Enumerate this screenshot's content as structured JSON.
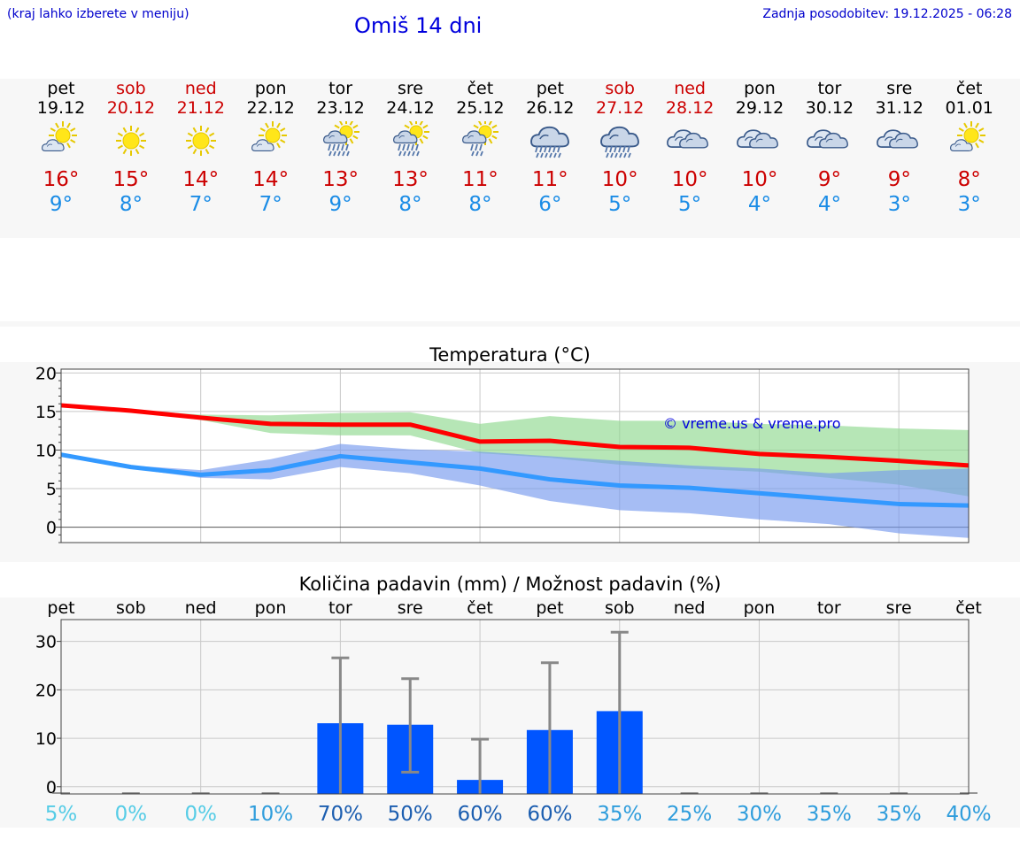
{
  "header": {
    "hint": "(kraj lahko izberete v meniju)",
    "title": "Omiš 14 dni",
    "updated": "Zadnja posodobitev: 19.12.2025 - 06:28"
  },
  "days": [
    {
      "name": "pet",
      "date": "19.12",
      "tmax": "16°",
      "tmin": "9°",
      "icon": "sun-cloud-icon",
      "weekend": false
    },
    {
      "name": "sob",
      "date": "20.12",
      "tmax": "15°",
      "tmin": "8°",
      "icon": "sun-icon",
      "weekend": true
    },
    {
      "name": "ned",
      "date": "21.12",
      "tmax": "14°",
      "tmin": "7°",
      "icon": "sun-icon",
      "weekend": true
    },
    {
      "name": "pon",
      "date": "22.12",
      "tmax": "14°",
      "tmin": "7°",
      "icon": "sun-cloud-icon",
      "weekend": false
    },
    {
      "name": "tor",
      "date": "23.12",
      "tmax": "13°",
      "tmin": "9°",
      "icon": "sun-cloud-rain-icon",
      "weekend": false
    },
    {
      "name": "sre",
      "date": "24.12",
      "tmax": "13°",
      "tmin": "8°",
      "icon": "sun-cloud-rain-icon",
      "weekend": false
    },
    {
      "name": "čet",
      "date": "25.12",
      "tmax": "11°",
      "tmin": "8°",
      "icon": "sun-cloud-light-rain-icon",
      "weekend": false
    },
    {
      "name": "pet",
      "date": "26.12",
      "tmax": "11°",
      "tmin": "6°",
      "icon": "cloud-rain-icon",
      "weekend": false
    },
    {
      "name": "sob",
      "date": "27.12",
      "tmax": "10°",
      "tmin": "5°",
      "icon": "cloud-rain-icon",
      "weekend": true
    },
    {
      "name": "ned",
      "date": "28.12",
      "tmax": "10°",
      "tmin": "5°",
      "icon": "cloud-icon",
      "weekend": true
    },
    {
      "name": "pon",
      "date": "29.12",
      "tmax": "10°",
      "tmin": "4°",
      "icon": "cloud-icon",
      "weekend": false
    },
    {
      "name": "tor",
      "date": "30.12",
      "tmax": "9°",
      "tmin": "4°",
      "icon": "cloud-icon",
      "weekend": false
    },
    {
      "name": "sre",
      "date": "31.12",
      "tmax": "9°",
      "tmin": "3°",
      "icon": "cloud-icon",
      "weekend": false
    },
    {
      "name": "čet",
      "date": "01.01",
      "tmax": "8°",
      "tmin": "3°",
      "icon": "sun-cloud-icon",
      "weekend": false
    }
  ],
  "chart_data": [
    {
      "type": "line",
      "title": "Temperatura (°C)",
      "watermark": "© vreme.us & vreme.pro",
      "ylim": [
        -2,
        20.5
      ],
      "yticks": [
        0,
        5,
        10,
        15,
        20
      ],
      "x": [
        0,
        1,
        2,
        3,
        4,
        5,
        6,
        7,
        8,
        9,
        10,
        11,
        12,
        13
      ],
      "series": [
        {
          "name": "max",
          "color": "#ff0000",
          "values": [
            15.8,
            15.1,
            14.2,
            13.4,
            13.3,
            13.3,
            11.1,
            11.2,
            10.4,
            10.3,
            9.5,
            9.1,
            8.6,
            8.0
          ]
        },
        {
          "name": "min",
          "color": "#3399ff",
          "values": [
            9.4,
            7.8,
            6.8,
            7.4,
            9.2,
            8.4,
            7.6,
            6.2,
            5.4,
            5.1,
            4.4,
            3.7,
            3.0,
            2.8
          ]
        }
      ],
      "bands": [
        {
          "name": "max-range",
          "color": "#8fd98f",
          "upper": [
            15.8,
            15.2,
            14.6,
            14.5,
            14.8,
            14.9,
            13.4,
            14.4,
            13.8,
            13.8,
            13.4,
            13.2,
            12.8,
            12.6
          ],
          "lower": [
            15.8,
            15.0,
            13.9,
            12.2,
            11.9,
            11.9,
            9.6,
            9.0,
            8.1,
            7.6,
            7.2,
            6.4,
            5.5,
            4.0
          ]
        },
        {
          "name": "min-range",
          "color": "#7799ee",
          "upper": [
            9.4,
            8.0,
            7.4,
            8.8,
            10.8,
            10.1,
            9.8,
            9.2,
            8.6,
            8.0,
            7.6,
            7.0,
            7.4,
            7.6
          ],
          "lower": [
            9.4,
            7.6,
            6.4,
            6.2,
            7.8,
            7.0,
            5.4,
            3.4,
            2.2,
            1.8,
            1.0,
            0.4,
            -0.8,
            -1.4
          ]
        }
      ]
    },
    {
      "type": "bar",
      "title": "Količina padavin (mm) / Možnost padavin (%)",
      "categories": [
        "pet",
        "sob",
        "ned",
        "pon",
        "tor",
        "sre",
        "čet",
        "pet",
        "sob",
        "ned",
        "pon",
        "tor",
        "sre",
        "čet"
      ],
      "values": [
        0,
        0,
        0,
        0,
        13.1,
        12.8,
        1.4,
        11.7,
        15.6,
        0,
        0,
        0,
        0,
        0
      ],
      "err_low": [
        0,
        0,
        0,
        0,
        0,
        3,
        0,
        0,
        0,
        0,
        0,
        0,
        0,
        0
      ],
      "err_high": [
        0,
        0,
        0,
        0,
        26.6,
        22.3,
        9.8,
        25.6,
        31.9,
        0,
        0,
        0,
        0,
        0
      ],
      "ylim": [
        -1.5,
        34.5
      ],
      "yticks": [
        0,
        10,
        20,
        30
      ],
      "chance": [
        "5%",
        "0%",
        "0%",
        "10%",
        "70%",
        "50%",
        "60%",
        "60%",
        "35%",
        "25%",
        "30%",
        "35%",
        "35%",
        "40%"
      ],
      "chance_colors": [
        "#55cce6",
        "#55cce6",
        "#55cce6",
        "#2f9ddc",
        "#1c5eb0",
        "#1c5eb0",
        "#1c5eb0",
        "#1c5eb0",
        "#2f9ddc",
        "#2f9ddc",
        "#2f9ddc",
        "#2f9ddc",
        "#2f9ddc",
        "#2f9ddc"
      ]
    }
  ]
}
